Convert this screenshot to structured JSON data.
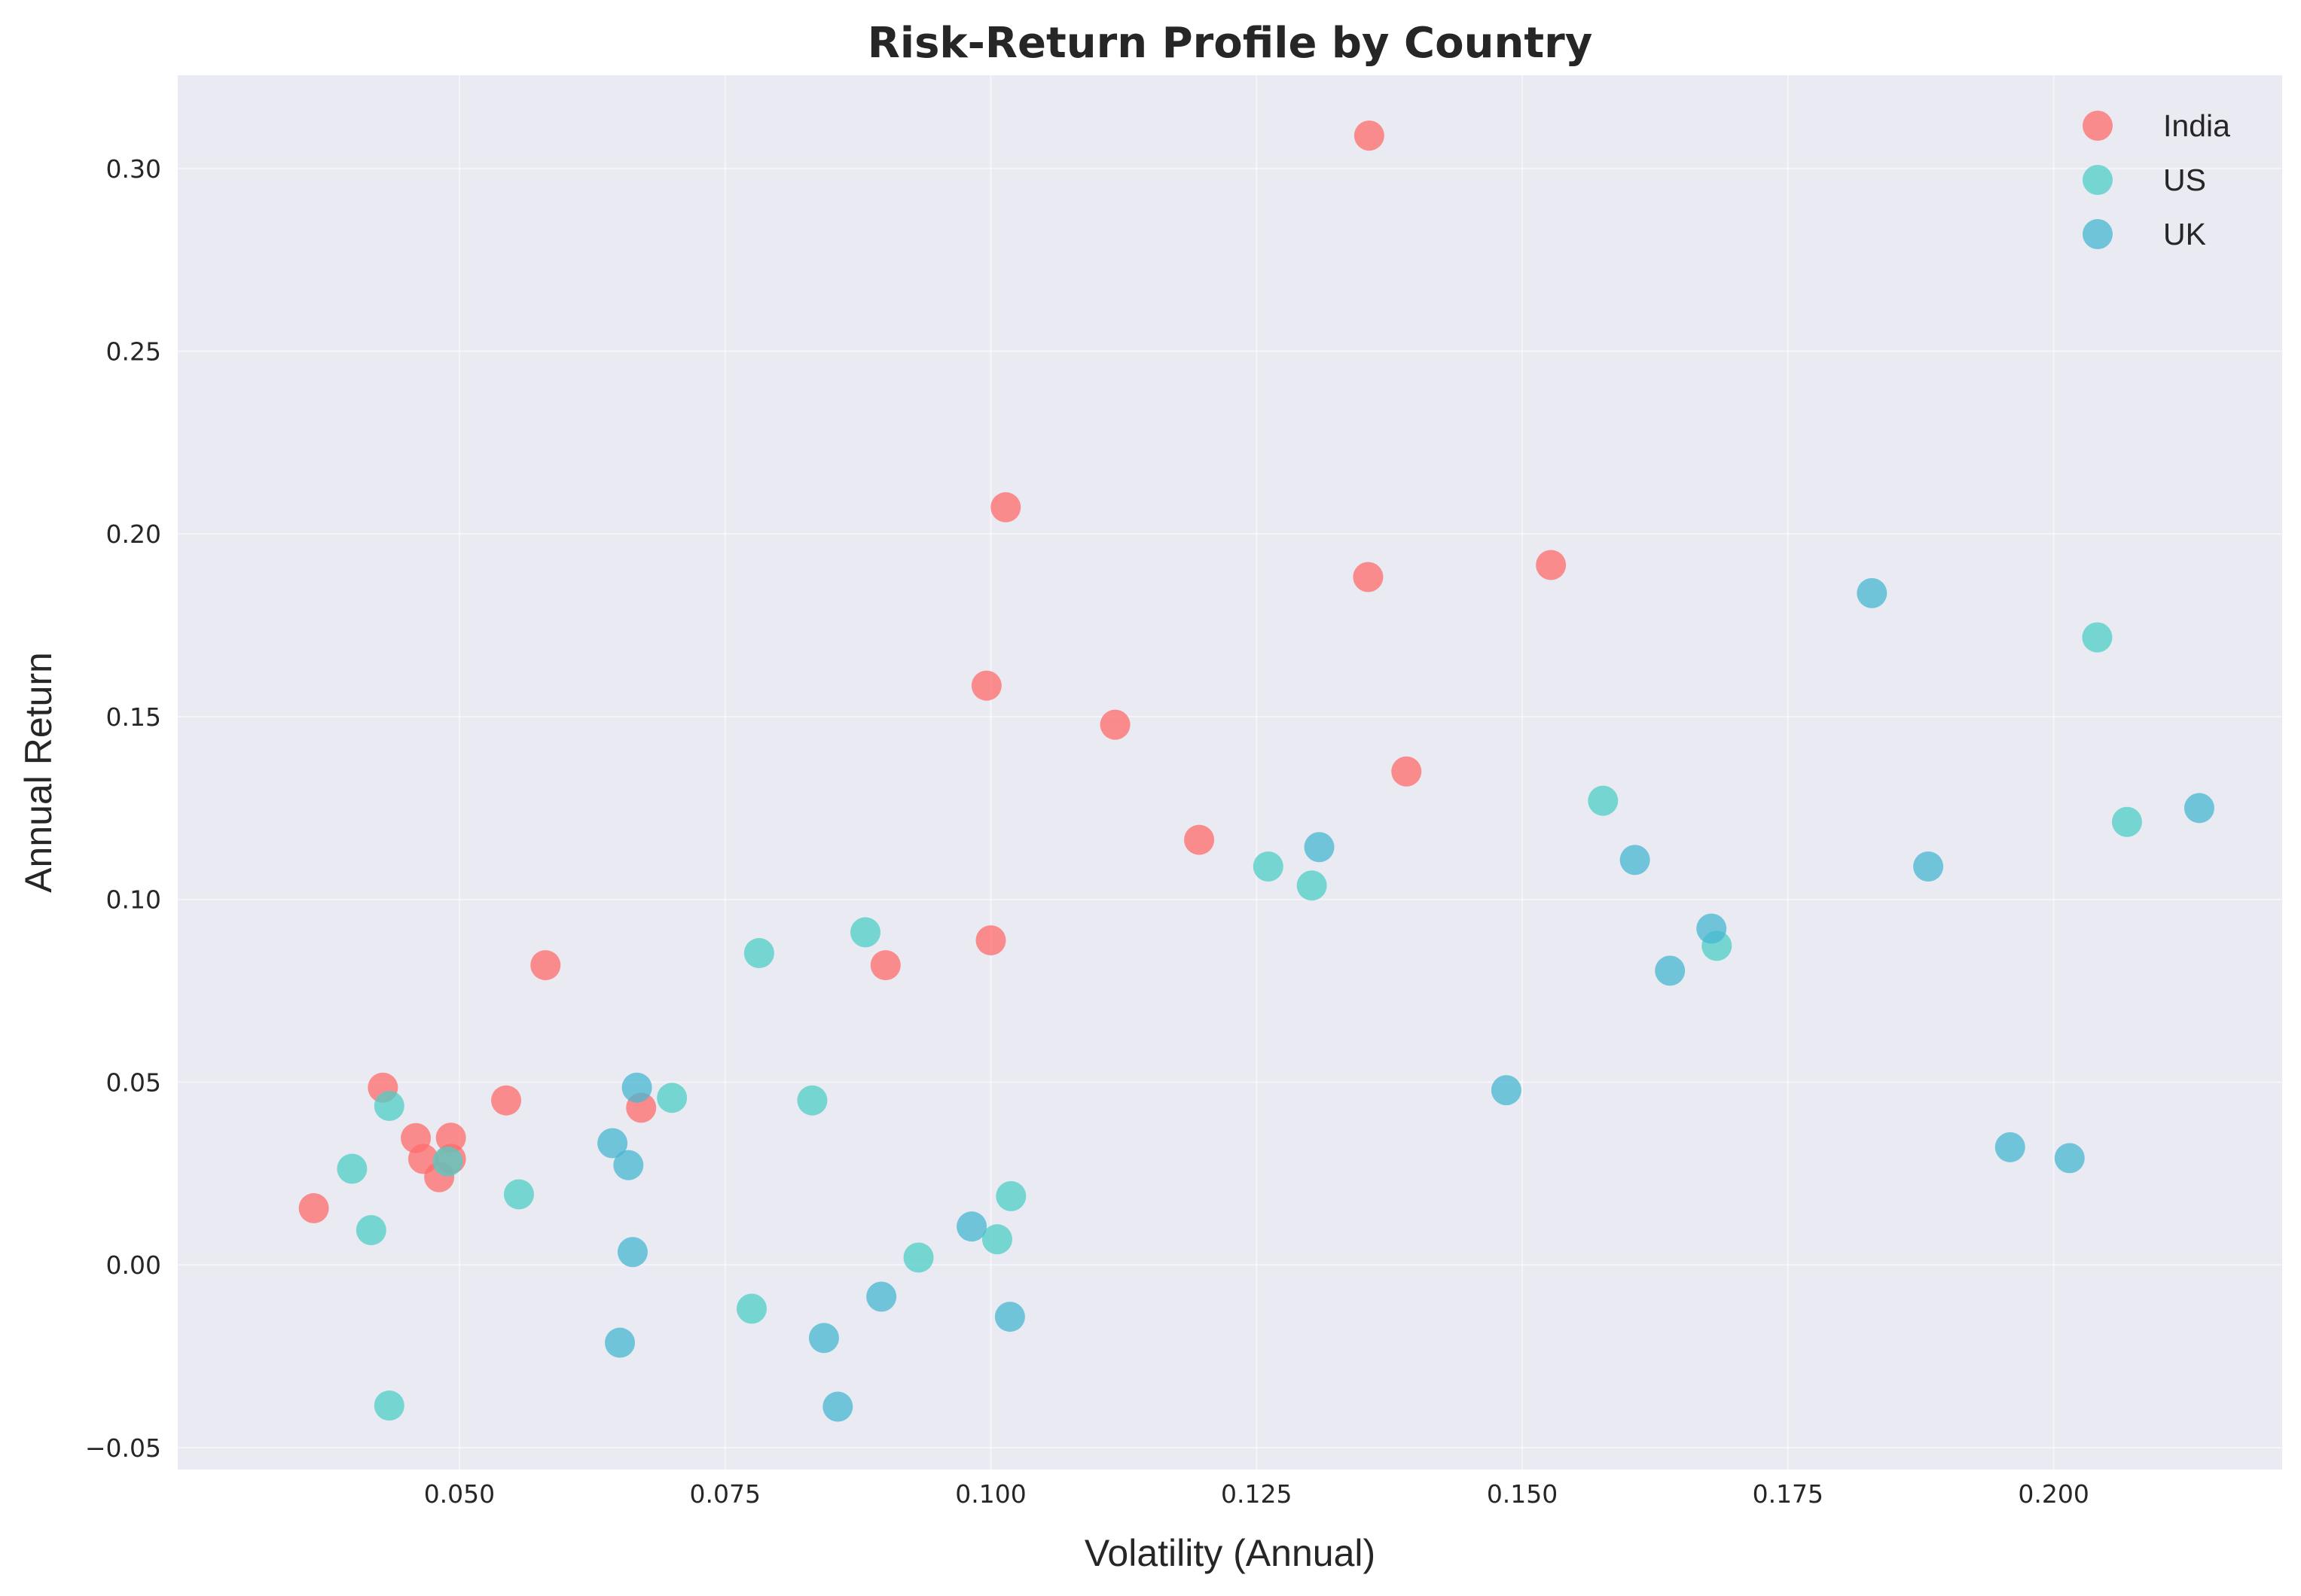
{
  "chart_data": {
    "type": "scatter",
    "title": "Risk-Return Profile by Country",
    "xlabel": "Volatility (Annual)",
    "ylabel": "Annual Return",
    "xlim": [
      0.0235,
      0.2215
    ],
    "ylim": [
      -0.056,
      0.3255
    ],
    "x_ticks": [
      0.05,
      0.075,
      0.1,
      0.125,
      0.15,
      0.175,
      0.2
    ],
    "x_tick_labels": [
      "0.050",
      "0.075",
      "0.100",
      "0.125",
      "0.150",
      "0.175",
      "0.200"
    ],
    "y_ticks": [
      -0.05,
      0.0,
      0.05,
      0.1,
      0.15,
      0.2,
      0.25,
      0.3
    ],
    "y_tick_labels": [
      "−0.05",
      "0.00",
      "0.05",
      "0.10",
      "0.15",
      "0.20",
      "0.25",
      "0.30"
    ],
    "grid": true,
    "legend_position": "top-right",
    "background": "#eaeaf2",
    "series": [
      {
        "name": "India",
        "color": "#ff6b6b",
        "points": [
          [
            0.0363,
            0.0155
          ],
          [
            0.0428,
            0.0485
          ],
          [
            0.0459,
            0.0347
          ],
          [
            0.0466,
            0.029
          ],
          [
            0.0481,
            0.024
          ],
          [
            0.0492,
            0.0348
          ],
          [
            0.0492,
            0.029
          ],
          [
            0.0544,
            0.045
          ],
          [
            0.0581,
            0.082
          ],
          [
            0.0671,
            0.043
          ],
          [
            0.0901,
            0.082
          ],
          [
            0.0996,
            0.1585
          ],
          [
            0.1,
            0.0888
          ],
          [
            0.1014,
            0.2073
          ],
          [
            0.1117,
            0.1478
          ],
          [
            0.1196,
            0.1163
          ],
          [
            0.1355,
            0.1882
          ],
          [
            0.1356,
            0.309
          ],
          [
            0.1391,
            0.135
          ],
          [
            0.1527,
            0.1915
          ]
        ]
      },
      {
        "name": "US",
        "color": "#4ecdc4",
        "points": [
          [
            0.0399,
            0.0263
          ],
          [
            0.0417,
            0.0095
          ],
          [
            0.0434,
            0.0435
          ],
          [
            0.0434,
            -0.0385
          ],
          [
            0.0489,
            0.0283
          ],
          [
            0.0556,
            0.0193
          ],
          [
            0.07,
            0.0457
          ],
          [
            0.0775,
            -0.012
          ],
          [
            0.0782,
            0.0853
          ],
          [
            0.0832,
            0.045
          ],
          [
            0.0882,
            0.091
          ],
          [
            0.0932,
            0.002
          ],
          [
            0.1006,
            0.007
          ],
          [
            0.1019,
            0.0188
          ],
          [
            0.1261,
            0.109
          ],
          [
            0.1302,
            0.1038
          ],
          [
            0.1576,
            0.127
          ],
          [
            0.1683,
            0.0873
          ],
          [
            0.2041,
            0.1717
          ],
          [
            0.2069,
            0.1212
          ]
        ]
      },
      {
        "name": "UK",
        "color": "#45b7d1",
        "points": [
          [
            0.0644,
            0.0333
          ],
          [
            0.0651,
            -0.0213
          ],
          [
            0.0659,
            0.0273
          ],
          [
            0.0663,
            0.0035
          ],
          [
            0.0667,
            0.0485
          ],
          [
            0.0843,
            -0.02
          ],
          [
            0.0856,
            -0.0388
          ],
          [
            0.0897,
            -0.0087
          ],
          [
            0.0982,
            0.0105
          ],
          [
            0.1018,
            -0.0142
          ],
          [
            0.1309,
            0.1143
          ],
          [
            0.1485,
            0.0478
          ],
          [
            0.1606,
            0.1108
          ],
          [
            0.1639,
            0.0805
          ],
          [
            0.1678,
            0.092
          ],
          [
            0.1829,
            0.1838
          ],
          [
            0.1882,
            0.109
          ],
          [
            0.1959,
            0.0322
          ],
          [
            0.2015,
            0.0292
          ],
          [
            0.2137,
            0.125
          ]
        ]
      }
    ]
  }
}
